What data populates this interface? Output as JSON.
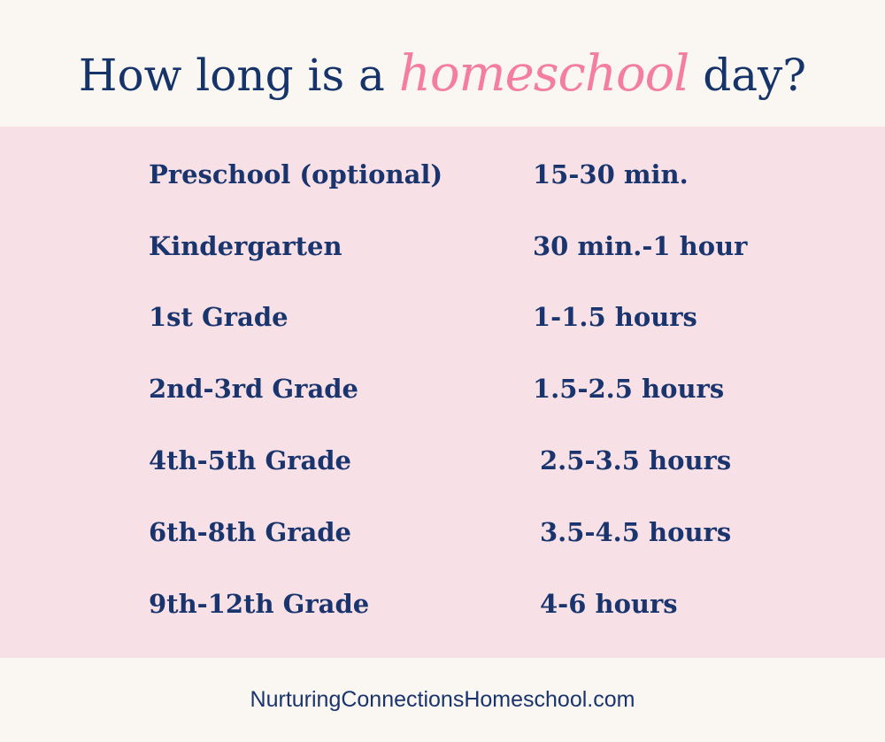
{
  "title": {
    "before": "How long is a",
    "accent": "homeschool",
    "after": "day?"
  },
  "colors": {
    "navy": "#1a356e",
    "pink_accent": "#f47ea0",
    "band": "#f7e1e6",
    "background": "#faf6f1"
  },
  "rows": [
    {
      "grade": "Preschool (optional)",
      "time": "15-30 min."
    },
    {
      "grade": "Kindergarten",
      "time": "30 min.-1 hour"
    },
    {
      "grade": "1st Grade",
      "time": "1-1.5 hours"
    },
    {
      "grade": "2nd-3rd Grade",
      "time": "1.5-2.5 hours"
    },
    {
      "grade": "4th-5th Grade",
      "time": "2.5-3.5 hours"
    },
    {
      "grade": "6th-8th Grade",
      "time": "3.5-4.5 hours"
    },
    {
      "grade": "9th-12th Grade",
      "time": "4-6 hours"
    }
  ],
  "footer": "NurturingConnectionsHomeschool.com"
}
